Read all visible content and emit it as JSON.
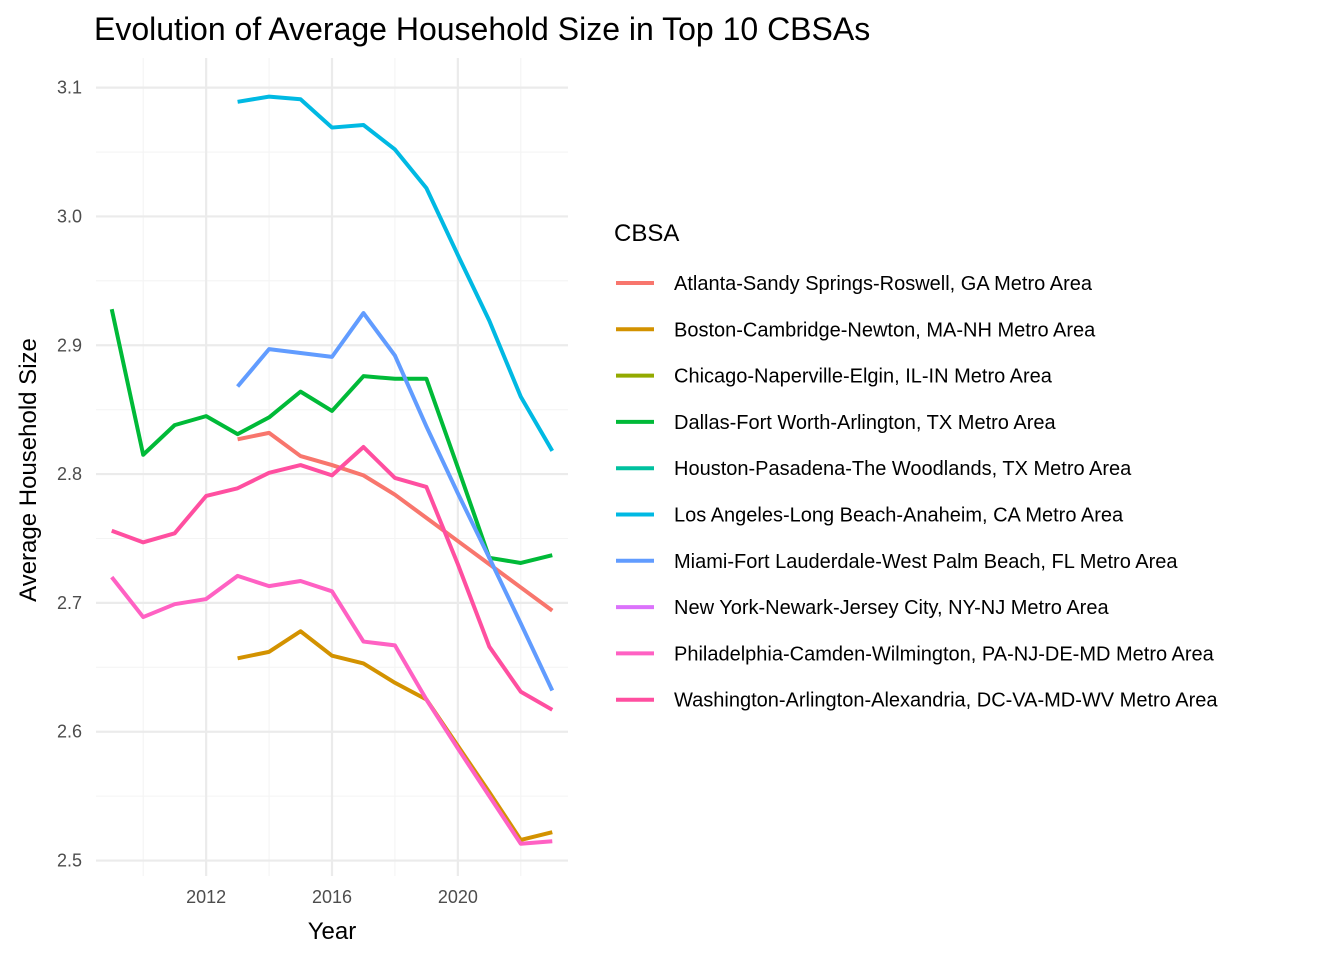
{
  "chart_data": {
    "type": "line",
    "title": "Evolution of Average Household Size in Top 10 CBSAs",
    "xlabel": "Year",
    "ylabel": "Average Household Size",
    "xlim": [
      2008.5,
      2023.5
    ],
    "ylim": [
      2.488,
      3.123
    ],
    "x_ticks": [
      2012,
      2016,
      2020
    ],
    "y_ticks": [
      2.5,
      2.6,
      2.7,
      2.8,
      2.9,
      3.0,
      3.1
    ],
    "x_tick_labels": [
      "2012",
      "2016",
      "2020"
    ],
    "y_tick_labels": [
      "2.5",
      "2.6",
      "2.7",
      "2.8",
      "2.9",
      "3.0",
      "3.1"
    ],
    "grid": true,
    "legend_title": "CBSA",
    "legend_position": "right",
    "series": [
      {
        "name": "Atlanta-Sandy Springs-Roswell, GA Metro Area",
        "color": "#F8766D",
        "x": [
          2013,
          2014,
          2015,
          2016,
          2017,
          2018,
          2019,
          2020,
          2021,
          2022,
          2023
        ],
        "y": [
          2.827,
          2.832,
          2.814,
          2.807,
          2.799,
          2.784,
          2.766,
          2.748,
          2.73,
          2.712,
          2.694
        ]
      },
      {
        "name": "Boston-Cambridge-Newton, MA-NH Metro Area",
        "color": "#D39200",
        "x": [
          2013,
          2014,
          2015,
          2016,
          2017,
          2018,
          2019,
          2020,
          2021,
          2022,
          2023
        ],
        "y": [
          2.657,
          2.662,
          2.678,
          2.659,
          2.653,
          2.638,
          2.625,
          2.589,
          2.553,
          2.516,
          2.522
        ]
      },
      {
        "name": "Chicago-Naperville-Elgin, IL-IN Metro Area",
        "color": "#93AA00",
        "x": [],
        "y": []
      },
      {
        "name": "Dallas-Fort Worth-Arlington, TX Metro Area",
        "color": "#00BA38",
        "x": [
          2009,
          2010,
          2011,
          2012,
          2013,
          2014,
          2015,
          2016,
          2017,
          2018,
          2019,
          2020,
          2021,
          2022,
          2023
        ],
        "y": [
          2.928,
          2.815,
          2.838,
          2.845,
          2.831,
          2.844,
          2.864,
          2.849,
          2.876,
          2.874,
          2.874,
          2.805,
          2.735,
          2.731,
          2.737
        ]
      },
      {
        "name": "Houston-Pasadena-The Woodlands, TX Metro Area",
        "color": "#00C19F",
        "x": [],
        "y": []
      },
      {
        "name": "Los Angeles-Long Beach-Anaheim, CA Metro Area",
        "color": "#00B9E3",
        "x": [
          2013,
          2014,
          2015,
          2016,
          2017,
          2018,
          2019,
          2020,
          2021,
          2022,
          2023
        ],
        "y": [
          3.089,
          3.093,
          3.091,
          3.069,
          3.071,
          3.052,
          3.022,
          2.97,
          2.919,
          2.86,
          2.818
        ]
      },
      {
        "name": "Miami-Fort Lauderdale-West Palm Beach, FL Metro Area",
        "color": "#619CFF",
        "x": [
          2013,
          2014,
          2015,
          2016,
          2017,
          2018,
          2019,
          2020,
          2021,
          2022,
          2023
        ],
        "y": [
          2.868,
          2.897,
          2.894,
          2.891,
          2.925,
          2.892,
          2.837,
          2.785,
          2.735,
          2.684,
          2.632
        ]
      },
      {
        "name": "New York-Newark-Jersey City, NY-NJ Metro Area",
        "color": "#DB72FB",
        "x": [],
        "y": []
      },
      {
        "name": "Philadelphia-Camden-Wilmington, PA-NJ-DE-MD Metro Area",
        "color": "#FF61C3",
        "x": [
          2009,
          2010,
          2011,
          2012,
          2013,
          2014,
          2015,
          2016,
          2017,
          2018,
          2019,
          2020,
          2021,
          2022,
          2023
        ],
        "y": [
          2.72,
          2.689,
          2.699,
          2.703,
          2.721,
          2.713,
          2.717,
          2.709,
          2.67,
          2.667,
          2.625,
          2.587,
          2.55,
          2.513,
          2.515
        ]
      },
      {
        "name": "Washington-Arlington-Alexandria, DC-VA-MD-WV Metro Area",
        "color": "#FF4FA0",
        "x": [
          2009,
          2010,
          2011,
          2012,
          2013,
          2014,
          2015,
          2016,
          2017,
          2018,
          2019,
          2020,
          2021,
          2022,
          2023
        ],
        "y": [
          2.756,
          2.747,
          2.754,
          2.783,
          2.789,
          2.801,
          2.807,
          2.799,
          2.821,
          2.797,
          2.79,
          2.73,
          2.666,
          2.631,
          2.617
        ]
      }
    ]
  }
}
